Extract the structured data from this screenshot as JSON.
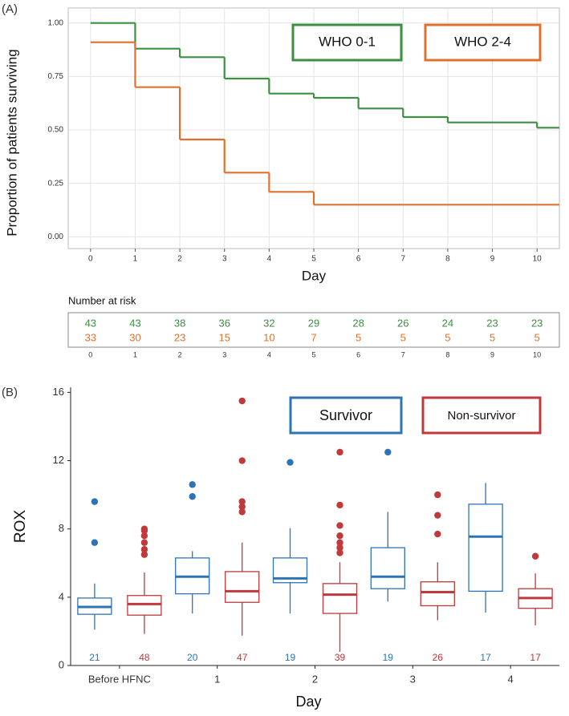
{
  "chart_data": [
    {
      "type": "step",
      "panel_label": "(A)",
      "xlabel": "Day",
      "ylabel": "Proportion of patients surviving",
      "x": [
        0,
        1,
        2,
        3,
        4,
        5,
        6,
        7,
        8,
        9,
        10
      ],
      "xlim": [
        -0.5,
        10.5
      ],
      "xticks": [
        0,
        1,
        2,
        3,
        4,
        5,
        6,
        7,
        8,
        9,
        10
      ],
      "ylim": [
        -0.055,
        1.07
      ],
      "yticks": [
        {
          "value": 0,
          "label": "0.00"
        },
        {
          "value": 0.25,
          "label": "0.25"
        },
        {
          "value": 0.5,
          "label": "0.50"
        },
        {
          "value": 0.75,
          "label": "0.75"
        },
        {
          "value": 1,
          "label": "1.00"
        }
      ],
      "grid": true,
      "legend": "top-right",
      "risk_table_title": "Number at risk",
      "series": [
        {
          "name": "WHO 0-1",
          "color": "#3d8f41",
          "values": [
            1.0,
            0.88,
            0.84,
            0.74,
            0.67,
            0.65,
            0.6,
            0.56,
            0.535,
            0.535,
            0.51
          ],
          "at_risk": [
            43,
            43,
            38,
            36,
            32,
            29,
            28,
            26,
            24,
            23,
            23
          ]
        },
        {
          "name": "WHO 2-4",
          "color": "#e0712c",
          "values": [
            0.91,
            0.7,
            0.455,
            0.3,
            0.21,
            0.15,
            0.15,
            0.15,
            0.15,
            0.15,
            0.15
          ],
          "at_risk": [
            33,
            30,
            23,
            15,
            10,
            7,
            5,
            5,
            5,
            5,
            5
          ]
        }
      ]
    },
    {
      "type": "boxplot",
      "panel_label": "(B)",
      "xlabel": "Day",
      "ylabel": "ROX",
      "categories": [
        "Before HFNC",
        "1",
        "2",
        "3",
        "4"
      ],
      "ylim": [
        0,
        16.3
      ],
      "yticks": [
        0,
        4,
        8,
        12,
        16
      ],
      "legend": "top-right",
      "series": [
        {
          "name": "Survivor",
          "color": "#2e74b5",
          "low": [
            2.1,
            3.05,
            3.05,
            3.75,
            3.1
          ],
          "q1": [
            3.0,
            4.2,
            4.85,
            4.5,
            4.35
          ],
          "median": [
            3.43,
            5.2,
            5.1,
            5.2,
            7.55
          ],
          "q3": [
            3.95,
            6.3,
            6.3,
            6.9,
            9.45
          ],
          "high": [
            4.8,
            6.7,
            8.05,
            9.0,
            10.7
          ],
          "outliers": [
            [
              7.2,
              9.6
            ],
            [
              9.9,
              10.6
            ],
            [
              11.9
            ],
            [
              12.5
            ],
            []
          ],
          "n": [
            21,
            20,
            19,
            19,
            17
          ]
        },
        {
          "name": "Non-survivor",
          "color": "#c0393b",
          "low": [
            1.85,
            1.75,
            0.8,
            2.65,
            2.35
          ],
          "q1": [
            2.95,
            3.7,
            3.05,
            3.5,
            3.35
          ],
          "median": [
            3.6,
            4.35,
            4.15,
            4.3,
            3.95
          ],
          "q3": [
            4.1,
            5.5,
            4.8,
            4.9,
            4.5
          ],
          "high": [
            5.45,
            7.2,
            6.05,
            6.05,
            5.4
          ],
          "outliers": [
            [
              6.5,
              6.8,
              7.2,
              7.6,
              7.9,
              8.0
            ],
            [
              9.0,
              9.3,
              9.6,
              12.0,
              15.5
            ],
            [
              6.6,
              6.9,
              7.2,
              7.6,
              8.2,
              9.4,
              12.5
            ],
            [
              7.7,
              8.8,
              10.0
            ],
            [
              6.4
            ]
          ],
          "n": [
            48,
            47,
            39,
            26,
            17
          ]
        }
      ]
    }
  ]
}
